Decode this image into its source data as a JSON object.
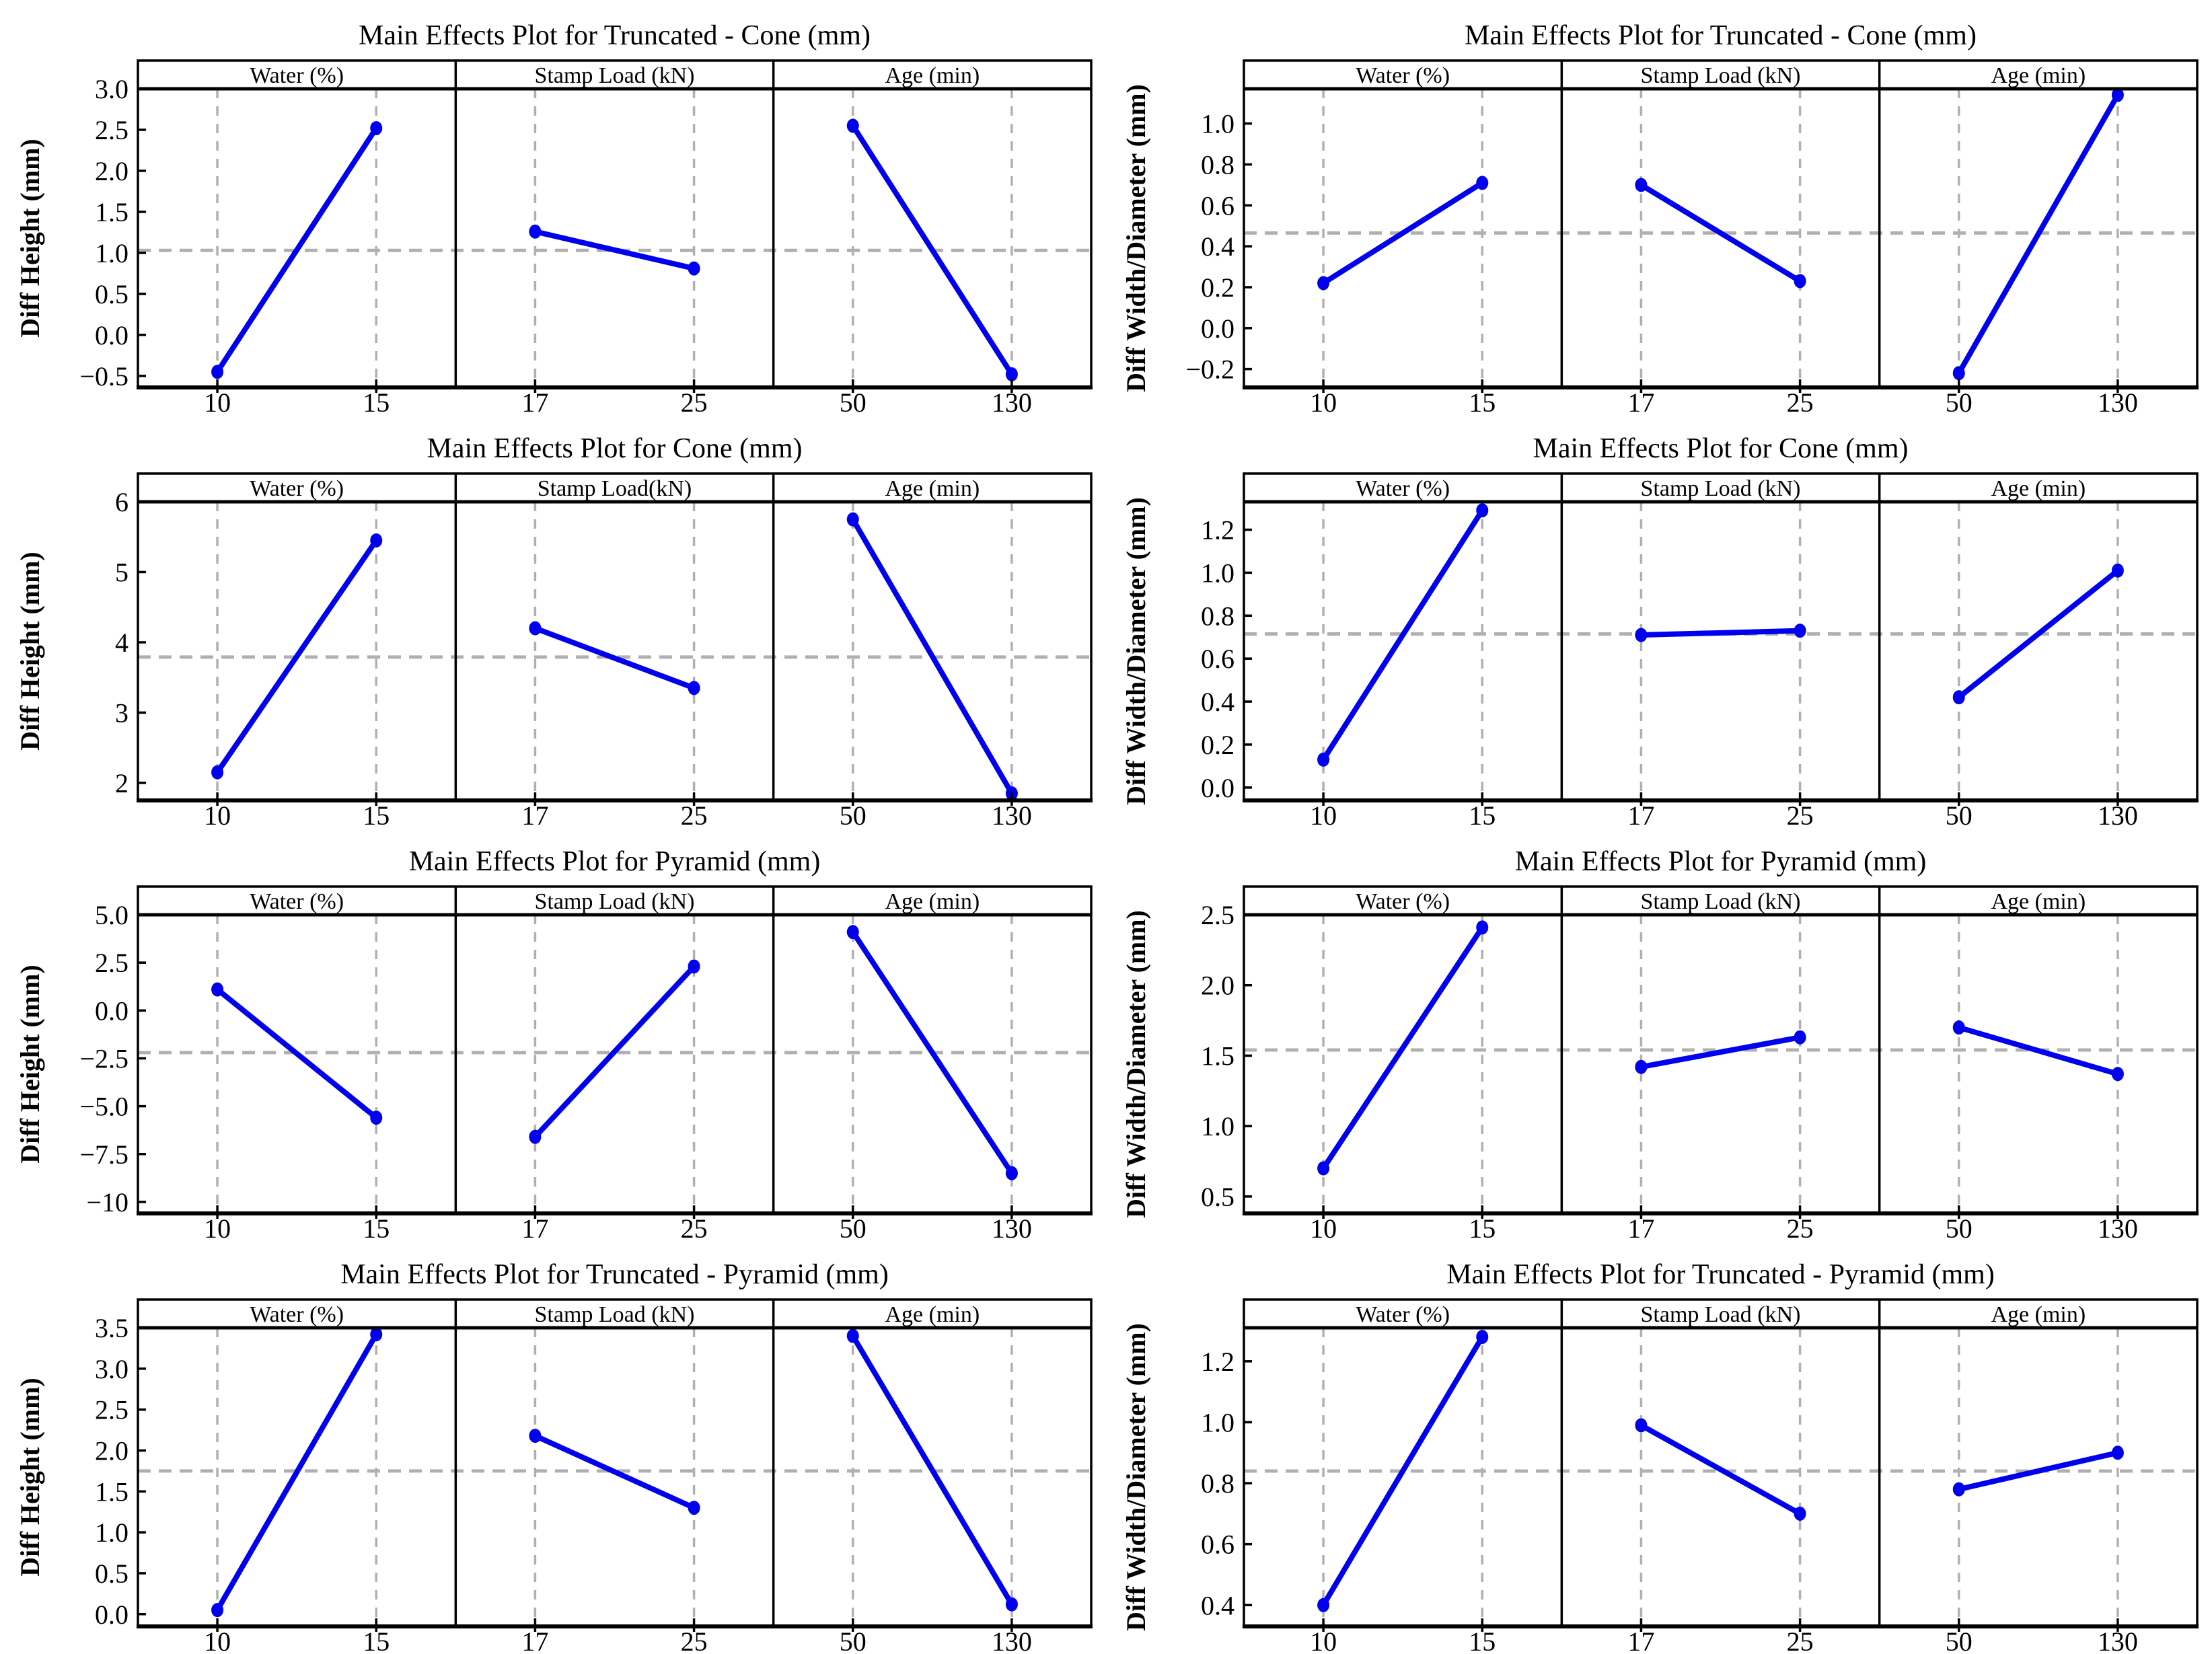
{
  "colors": {
    "line": "#0000ee",
    "marker": "#0000ee",
    "grid_dash": "#b0b0b0",
    "mean_dash": "#b0b0b0",
    "frame": "#000000",
    "text": "#000000",
    "background": "#ffffff"
  },
  "chart_data": [
    {
      "type": "line",
      "title": "Main Effects Plot for Truncated - Cone (mm)",
      "ylabel": "Diff Height (mm)",
      "ylim": [
        -0.64,
        3.0
      ],
      "mean_line": 1.03,
      "grid": true,
      "yticks": [
        {
          "v": 3.0,
          "label": "3.0"
        },
        {
          "v": 2.5,
          "label": "2.5"
        },
        {
          "v": 2.0,
          "label": "2.0"
        },
        {
          "v": 1.5,
          "label": "1.5"
        },
        {
          "v": 1.0,
          "label": "1.0"
        },
        {
          "v": 0.5,
          "label": "0.5"
        },
        {
          "v": 0.0,
          "label": "0.0"
        },
        {
          "v": -0.5,
          "label": "−0.5"
        }
      ],
      "panels": [
        {
          "header": "Water (%)",
          "x_labels": [
            "10",
            "15"
          ],
          "values": [
            -0.45,
            2.52
          ]
        },
        {
          "header": "Stamp Load (kN)",
          "x_labels": [
            "17",
            "25"
          ],
          "values": [
            1.26,
            0.81
          ]
        },
        {
          "header": "Age (min)",
          "x_labels": [
            "50",
            "130"
          ],
          "values": [
            2.55,
            -0.48
          ]
        }
      ]
    },
    {
      "type": "line",
      "title": "Main Effects Plot for Truncated - Cone (mm)",
      "ylabel": "Diff Width/Diameter (mm)",
      "ylim": [
        -0.29,
        1.17
      ],
      "mean_line": 0.465,
      "grid": true,
      "yticks": [
        {
          "v": 1.0,
          "label": "1.0"
        },
        {
          "v": 0.8,
          "label": "0.8"
        },
        {
          "v": 0.6,
          "label": "0.6"
        },
        {
          "v": 0.4,
          "label": "0.4"
        },
        {
          "v": 0.2,
          "label": "0.2"
        },
        {
          "v": 0.0,
          "label": "0.0"
        },
        {
          "v": -0.2,
          "label": "−0.2"
        }
      ],
      "panels": [
        {
          "header": "Water (%)",
          "x_labels": [
            "10",
            "15"
          ],
          "values": [
            0.22,
            0.71
          ]
        },
        {
          "header": "Stamp Load (kN)",
          "x_labels": [
            "17",
            "25"
          ],
          "values": [
            0.7,
            0.23
          ]
        },
        {
          "header": "Age (min)",
          "x_labels": [
            "50",
            "130"
          ],
          "values": [
            -0.22,
            1.14
          ]
        }
      ]
    },
    {
      "type": "line",
      "title": "Main Effects Plot for Cone (mm)",
      "ylabel": "Diff Height (mm)",
      "ylim": [
        1.75,
        6.0
      ],
      "mean_line": 3.79,
      "grid": true,
      "yticks": [
        {
          "v": 6,
          "label": "6"
        },
        {
          "v": 5,
          "label": "5"
        },
        {
          "v": 4,
          "label": "4"
        },
        {
          "v": 3,
          "label": "3"
        },
        {
          "v": 2,
          "label": "2"
        }
      ],
      "panels": [
        {
          "header": "Water (%)",
          "x_labels": [
            "10",
            "15"
          ],
          "values": [
            2.15,
            5.45
          ]
        },
        {
          "header": "Stamp Load(kN)",
          "x_labels": [
            "17",
            "25"
          ],
          "values": [
            4.2,
            3.35
          ]
        },
        {
          "header": "Age (min)",
          "x_labels": [
            "50",
            "130"
          ],
          "values": [
            5.75,
            1.85
          ]
        }
      ]
    },
    {
      "type": "line",
      "title": "Main Effects Plot for Cone (mm)",
      "ylabel": "Diff Width/Diameter (mm)",
      "ylim": [
        -0.06,
        1.33
      ],
      "mean_line": 0.715,
      "grid": true,
      "yticks": [
        {
          "v": 1.2,
          "label": "1.2"
        },
        {
          "v": 1.0,
          "label": "1.0"
        },
        {
          "v": 0.8,
          "label": "0.8"
        },
        {
          "v": 0.6,
          "label": "0.6"
        },
        {
          "v": 0.4,
          "label": "0.4"
        },
        {
          "v": 0.2,
          "label": "0.2"
        },
        {
          "v": 0.0,
          "label": "0.0"
        }
      ],
      "panels": [
        {
          "header": "Water (%)",
          "x_labels": [
            "10",
            "15"
          ],
          "values": [
            0.13,
            1.29
          ]
        },
        {
          "header": "Stamp Load (kN)",
          "x_labels": [
            "17",
            "25"
          ],
          "values": [
            0.71,
            0.73
          ]
        },
        {
          "header": "Age (min)",
          "x_labels": [
            "50",
            "130"
          ],
          "values": [
            0.42,
            1.01
          ]
        }
      ]
    },
    {
      "type": "line",
      "title": "Main Effects Plot for Pyramid (mm)",
      "ylabel": "Diff Height (mm)",
      "ylim": [
        -10.6,
        5.0
      ],
      "mean_line": -2.2,
      "grid": true,
      "yticks": [
        {
          "v": 5.0,
          "label": "5.0"
        },
        {
          "v": 2.5,
          "label": "2.5"
        },
        {
          "v": 0.0,
          "label": "0.0"
        },
        {
          "v": -2.5,
          "label": "−2.5"
        },
        {
          "v": -5.0,
          "label": "−5.0"
        },
        {
          "v": -7.5,
          "label": "−7.5"
        },
        {
          "v": -10,
          "label": "−10"
        }
      ],
      "panels": [
        {
          "header": "Water (%)",
          "x_labels": [
            "10",
            "15"
          ],
          "values": [
            1.1,
            -5.6
          ]
        },
        {
          "header": "Stamp Load (kN)",
          "x_labels": [
            "17",
            "25"
          ],
          "values": [
            -6.6,
            2.3
          ]
        },
        {
          "header": "Age (min)",
          "x_labels": [
            "50",
            "130"
          ],
          "values": [
            4.1,
            -8.5
          ]
        }
      ]
    },
    {
      "type": "line",
      "title": "Main Effects Plot for Pyramid (mm)",
      "ylabel": "Diff Width/Diameter (mm)",
      "ylim": [
        0.38,
        2.5
      ],
      "mean_line": 1.54,
      "grid": true,
      "yticks": [
        {
          "v": 2.5,
          "label": "2.5"
        },
        {
          "v": 2.0,
          "label": "2.0"
        },
        {
          "v": 1.5,
          "label": "1.5"
        },
        {
          "v": 1.0,
          "label": "1.0"
        },
        {
          "v": 0.5,
          "label": "0.5"
        }
      ],
      "panels": [
        {
          "header": "Water (%)",
          "x_labels": [
            "10",
            "15"
          ],
          "values": [
            0.7,
            2.41
          ]
        },
        {
          "header": "Stamp Load (kN)",
          "x_labels": [
            "17",
            "25"
          ],
          "values": [
            1.42,
            1.63
          ]
        },
        {
          "header": "Age (min)",
          "x_labels": [
            "50",
            "130"
          ],
          "values": [
            1.7,
            1.37
          ]
        }
      ]
    },
    {
      "type": "line",
      "title": "Main Effects Plot for Truncated - Pyramid (mm)",
      "ylabel": "Diff Height (mm)",
      "ylim": [
        -0.15,
        3.5
      ],
      "mean_line": 1.75,
      "grid": true,
      "yticks": [
        {
          "v": 3.5,
          "label": "3.5"
        },
        {
          "v": 3.0,
          "label": "3.0"
        },
        {
          "v": 2.5,
          "label": "2.5"
        },
        {
          "v": 2.0,
          "label": "2.0"
        },
        {
          "v": 1.5,
          "label": "1.5"
        },
        {
          "v": 1.0,
          "label": "1.0"
        },
        {
          "v": 0.5,
          "label": "0.5"
        },
        {
          "v": 0.0,
          "label": "0.0"
        }
      ],
      "panels": [
        {
          "header": "Water (%)",
          "x_labels": [
            "10",
            "15"
          ],
          "values": [
            0.05,
            3.42
          ]
        },
        {
          "header": "Stamp Load (kN)",
          "x_labels": [
            "17",
            "25"
          ],
          "values": [
            2.18,
            1.3
          ]
        },
        {
          "header": "Age (min)",
          "x_labels": [
            "50",
            "130"
          ],
          "values": [
            3.4,
            0.12
          ]
        }
      ]
    },
    {
      "type": "line",
      "title": "Main Effects Plot for Truncated - Pyramid (mm)",
      "ylabel": "Diff Width/Diameter (mm)",
      "ylim": [
        0.33,
        1.31
      ],
      "mean_line": 0.84,
      "grid": true,
      "yticks": [
        {
          "v": 1.2,
          "label": "1.2"
        },
        {
          "v": 1.0,
          "label": "1.0"
        },
        {
          "v": 0.8,
          "label": "0.8"
        },
        {
          "v": 0.6,
          "label": "0.6"
        },
        {
          "v": 0.4,
          "label": "0.4"
        }
      ],
      "panels": [
        {
          "header": "Water (%)",
          "x_labels": [
            "10",
            "15"
          ],
          "values": [
            0.4,
            1.28
          ]
        },
        {
          "header": "Stamp Load (kN)",
          "x_labels": [
            "17",
            "25"
          ],
          "values": [
            0.99,
            0.7
          ]
        },
        {
          "header": "Age (min)",
          "x_labels": [
            "50",
            "130"
          ],
          "values": [
            0.78,
            0.9
          ]
        }
      ]
    }
  ]
}
